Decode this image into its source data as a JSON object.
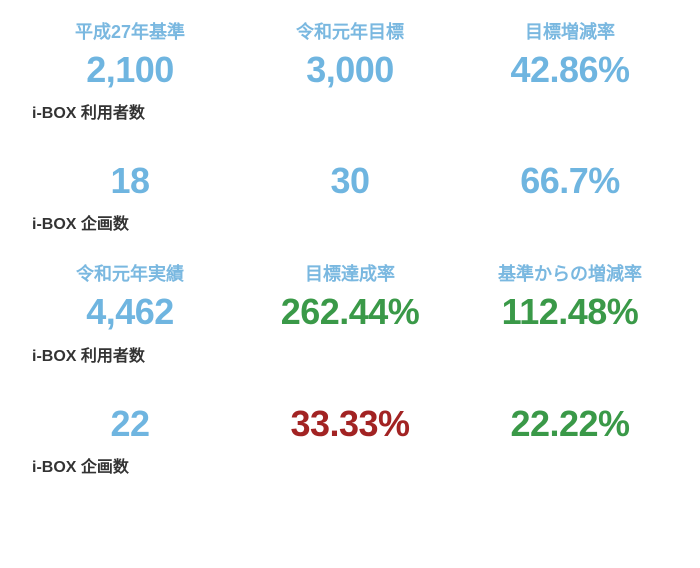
{
  "top_headers": {
    "col1": "平成27年基準",
    "col2": "令和元年目標",
    "col3": "目標増減率"
  },
  "top_row1": {
    "val1": "2,100",
    "val2": "3,000",
    "val3": "42.86%",
    "sublabel": "i-BOX 利用者数"
  },
  "top_row2": {
    "val1": "18",
    "val2": "30",
    "val3": "66.7%",
    "sublabel": "i-BOX 企画数"
  },
  "bottom_headers": {
    "col1": "令和元年実績",
    "col2": "目標達成率",
    "col3": "基準からの増減率"
  },
  "bottom_row1": {
    "val1": "4,462",
    "val2": "262.44%",
    "val3": "112.48%",
    "sublabel": "i-BOX 利用者数"
  },
  "bottom_row2": {
    "val1": "22",
    "val2": "33.33%",
    "val3": "22.22%",
    "sublabel": "i-BOX 企画数"
  },
  "colors": {
    "blue": "#6fb5e0",
    "header_blue": "#7ab8e0",
    "green": "#3a9948",
    "red": "#a22323",
    "text_dark": "#333333",
    "background": "#ffffff"
  }
}
